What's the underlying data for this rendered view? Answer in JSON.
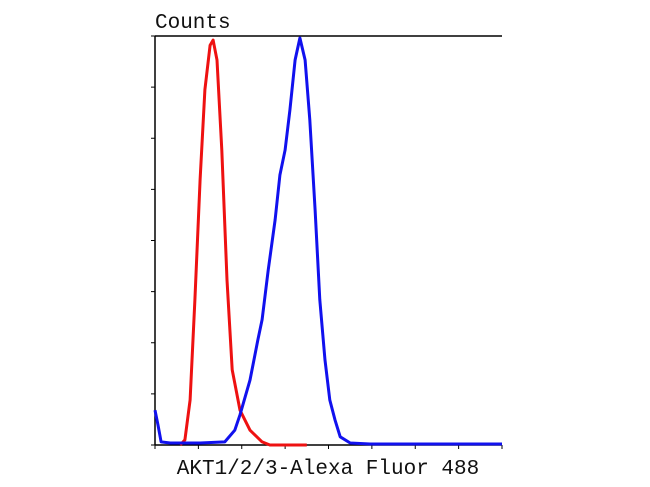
{
  "chart_data": {
    "type": "line",
    "y_label": "Counts",
    "x_label": "AKT1/2/3-Alexa Fluor 488",
    "xlim": [
      0,
      8
    ],
    "xticks": [
      0,
      1,
      2,
      3,
      4,
      5,
      6,
      7,
      8
    ],
    "ylim": [
      0,
      8
    ],
    "yticks": [
      0,
      1,
      2,
      3,
      4,
      5,
      6,
      7,
      8
    ],
    "series": [
      {
        "color": "#ee1111",
        "x": [
          0.58,
          0.69,
          0.81,
          0.92,
          1.04,
          1.15,
          1.27,
          1.34,
          1.43,
          1.54,
          1.66,
          1.78,
          1.96,
          2.19,
          2.47,
          2.65,
          3.5
        ],
        "values": [
          0,
          0.1,
          0.88,
          2.84,
          5.19,
          6.95,
          7.82,
          7.92,
          7.53,
          5.77,
          3.23,
          1.47,
          0.68,
          0.29,
          0.06,
          0,
          0
        ]
      },
      {
        "color": "#1111ee",
        "x": [
          0,
          0.07,
          0.14,
          0.35,
          1.04,
          1.61,
          1.84,
          1.96,
          2.19,
          2.37,
          2.47,
          2.61,
          2.77,
          2.88,
          3.0,
          3.11,
          3.23,
          3.34,
          3.46,
          3.57,
          3.69,
          3.8,
          3.92,
          4.03,
          4.15,
          4.27,
          4.5,
          4.96,
          8
        ],
        "values": [
          0.68,
          0.39,
          0.06,
          0.04,
          0.04,
          0.06,
          0.29,
          0.59,
          1.27,
          2.05,
          2.45,
          3.42,
          4.4,
          5.28,
          5.77,
          6.55,
          7.53,
          7.96,
          7.53,
          6.36,
          4.6,
          2.84,
          1.66,
          0.88,
          0.49,
          0.16,
          0.04,
          0.02,
          0.02
        ]
      }
    ]
  }
}
